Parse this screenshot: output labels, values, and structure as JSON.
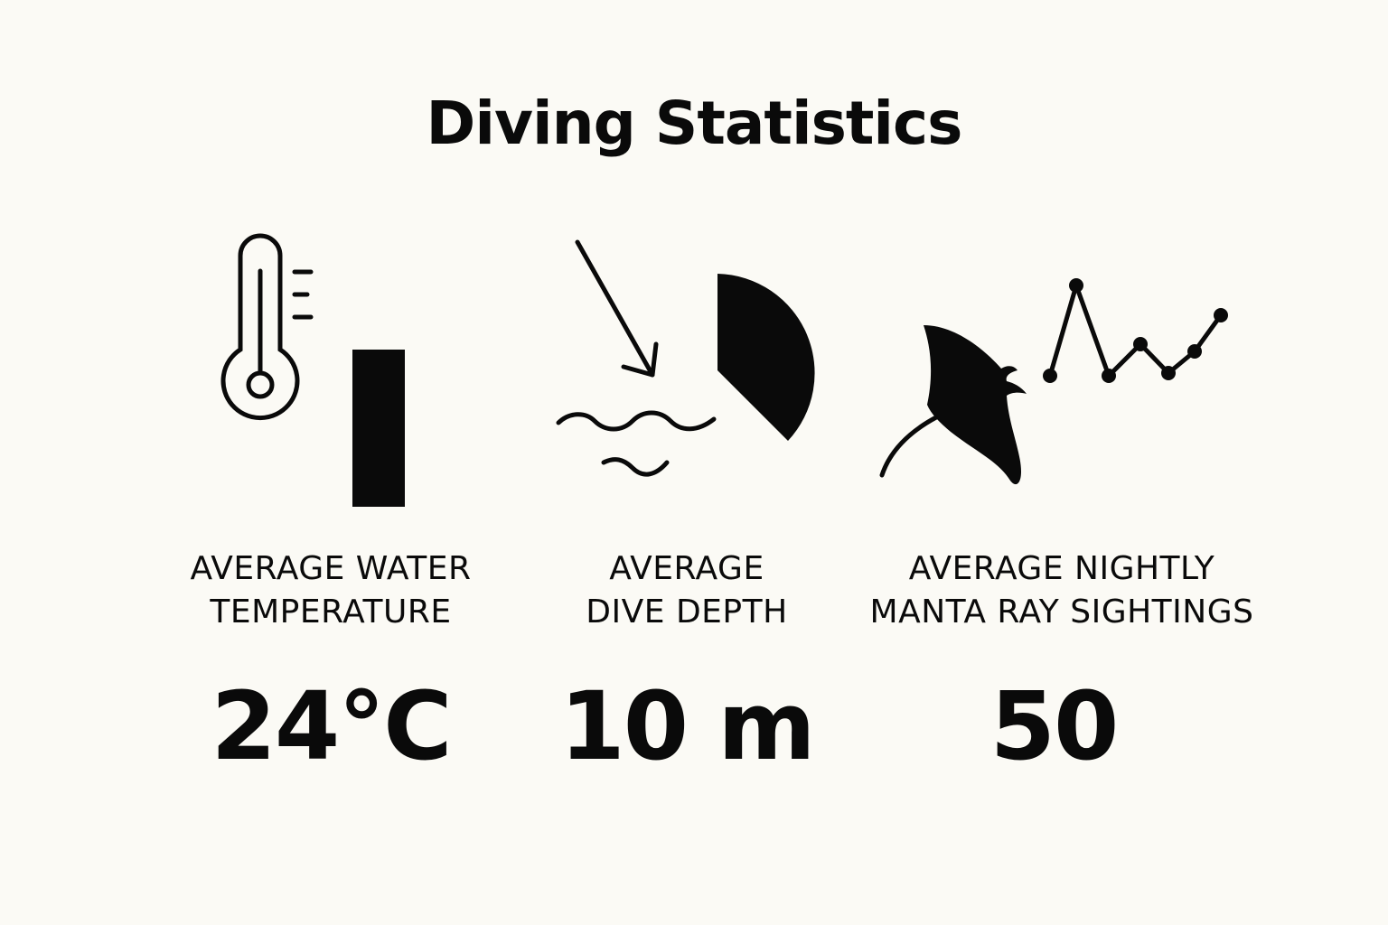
{
  "title": "Diving Statistics",
  "stats": [
    {
      "label_line1": "AVERAGE WATER",
      "label_line2": "TEMPERATURE",
      "value": "24°C",
      "icon": "thermometer-icon"
    },
    {
      "label_line1": "AVERAGE",
      "label_line2": "DIVE DEPTH",
      "value": "10 m",
      "icon": "dive-depth-icon"
    },
    {
      "label_line1": "AVERAGE NIGHTLY",
      "label_line2": "MANTA RAY SIGHTINGS",
      "value": "50",
      "icon": "manta-ray-icon"
    }
  ],
  "colors": {
    "background": "#fbfaf5",
    "ink": "#0a0a0a"
  }
}
